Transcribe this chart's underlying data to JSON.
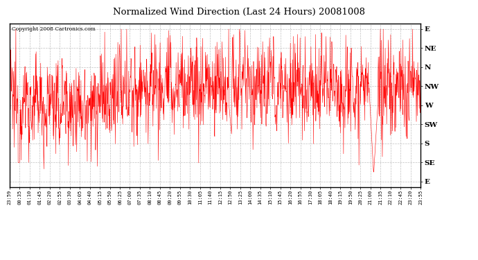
{
  "title": "Normalized Wind Direction (Last 24 Hours) 20081008",
  "copyright": "Copyright 2008 Cartronics.com",
  "line_color": "#ff0000",
  "bg_color": "#ffffff",
  "grid_color": "#b0b0b0",
  "ytick_labels": [
    "E",
    "NE",
    "N",
    "NW",
    "W",
    "SW",
    "S",
    "SE",
    "E"
  ],
  "ytick_values": [
    8,
    7,
    6,
    5,
    4,
    3,
    2,
    1,
    0
  ],
  "ylim": [
    -0.3,
    8.3
  ],
  "xtick_labels": [
    "23:59",
    "00:35",
    "01:10",
    "01:45",
    "02:20",
    "02:55",
    "03:30",
    "04:05",
    "04:40",
    "05:15",
    "05:50",
    "06:25",
    "07:00",
    "07:35",
    "08:10",
    "08:45",
    "09:20",
    "09:55",
    "10:30",
    "11:05",
    "11:40",
    "12:15",
    "12:50",
    "13:25",
    "14:00",
    "14:35",
    "15:10",
    "15:45",
    "16:20",
    "16:55",
    "17:30",
    "18:05",
    "18:40",
    "19:15",
    "19:50",
    "20:25",
    "21:00",
    "21:35",
    "22:10",
    "22:45",
    "23:20",
    "23:55"
  ],
  "figsize": [
    6.9,
    3.75
  ],
  "dpi": 100
}
